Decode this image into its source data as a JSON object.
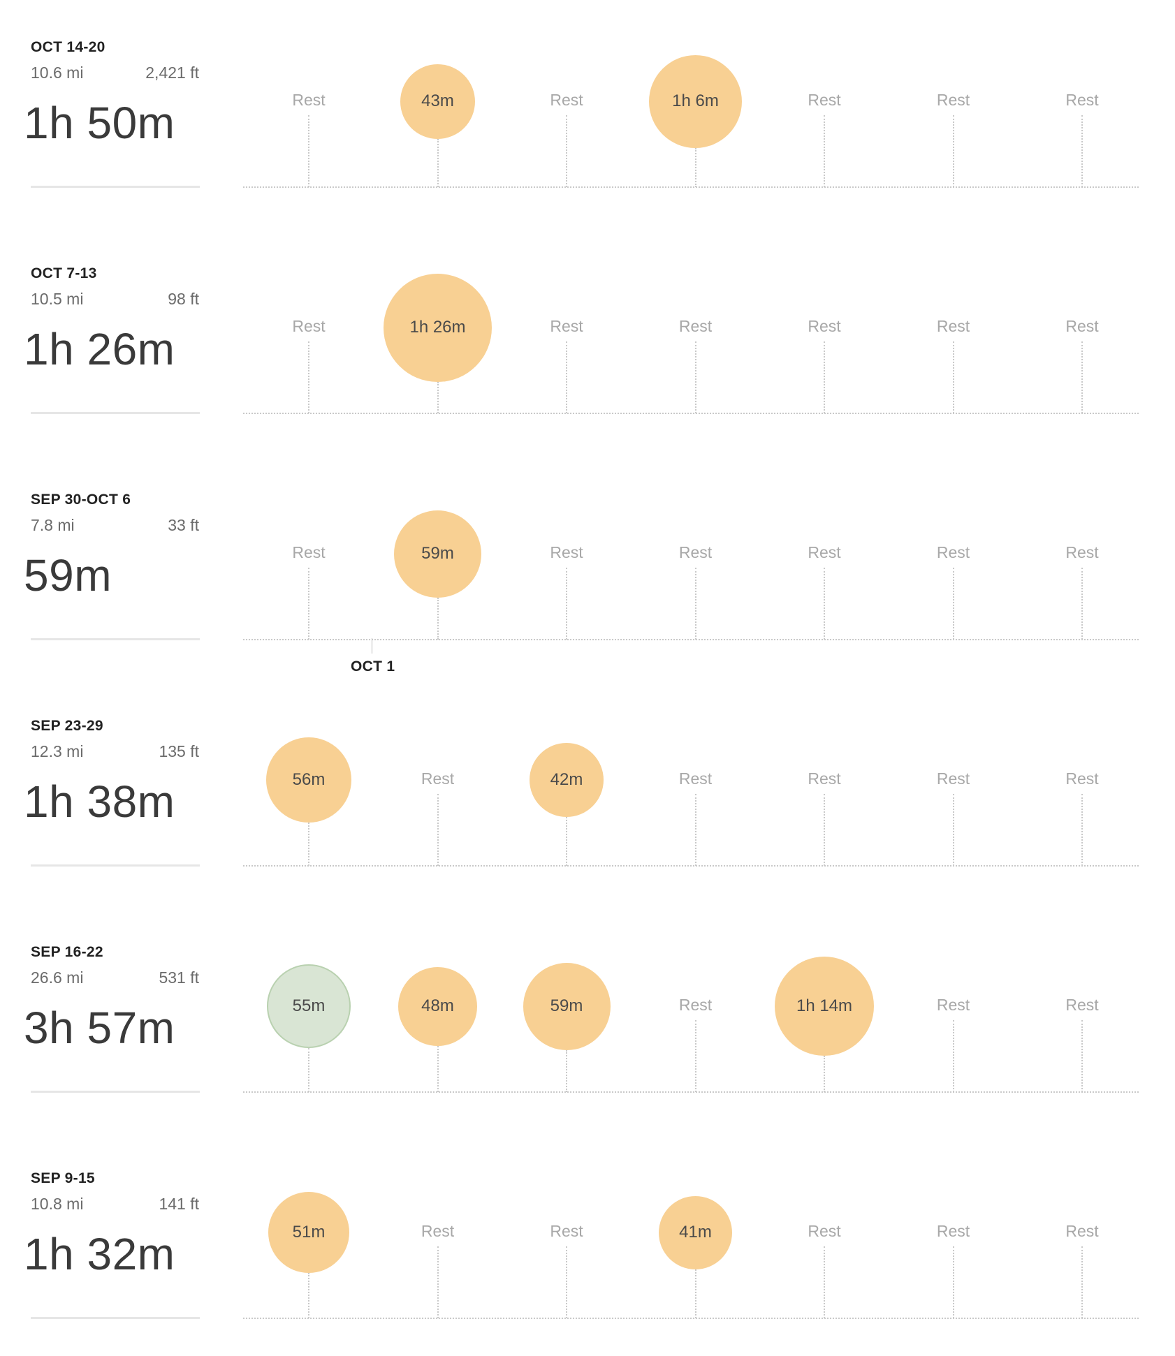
{
  "colors": {
    "bubble_fill": "#f8d093",
    "bubble_fill_alt": "#d9e5d4",
    "bubble_border_alt": "#b9d1b0"
  },
  "month_marker": {
    "label": "OCT 1"
  },
  "weeks": [
    {
      "label": "OCT 14-20",
      "distance": "10.6 mi",
      "elevation": "2,421 ft",
      "total": "1h 50m",
      "days": [
        {
          "type": "rest",
          "label": "Rest"
        },
        {
          "type": "run",
          "label": "43m",
          "minutes": 43
        },
        {
          "type": "rest",
          "label": "Rest"
        },
        {
          "type": "run",
          "label": "1h 6m",
          "minutes": 66
        },
        {
          "type": "rest",
          "label": "Rest"
        },
        {
          "type": "rest",
          "label": "Rest"
        },
        {
          "type": "rest",
          "label": "Rest"
        }
      ]
    },
    {
      "label": "OCT 7-13",
      "distance": "10.5 mi",
      "elevation": "98 ft",
      "total": "1h 26m",
      "days": [
        {
          "type": "rest",
          "label": "Rest"
        },
        {
          "type": "run",
          "label": "1h 26m",
          "minutes": 86
        },
        {
          "type": "rest",
          "label": "Rest"
        },
        {
          "type": "rest",
          "label": "Rest"
        },
        {
          "type": "rest",
          "label": "Rest"
        },
        {
          "type": "rest",
          "label": "Rest"
        },
        {
          "type": "rest",
          "label": "Rest"
        }
      ]
    },
    {
      "label": "SEP 30-OCT 6",
      "distance": "7.8 mi",
      "elevation": "33 ft",
      "total": "59m",
      "days": [
        {
          "type": "rest",
          "label": "Rest"
        },
        {
          "type": "run",
          "label": "59m",
          "minutes": 59
        },
        {
          "type": "rest",
          "label": "Rest"
        },
        {
          "type": "rest",
          "label": "Rest"
        },
        {
          "type": "rest",
          "label": "Rest"
        },
        {
          "type": "rest",
          "label": "Rest"
        },
        {
          "type": "rest",
          "label": "Rest"
        }
      ]
    },
    {
      "label": "SEP 23-29",
      "distance": "12.3 mi",
      "elevation": "135 ft",
      "total": "1h 38m",
      "days": [
        {
          "type": "run",
          "label": "56m",
          "minutes": 56
        },
        {
          "type": "rest",
          "label": "Rest"
        },
        {
          "type": "run",
          "label": "42m",
          "minutes": 42
        },
        {
          "type": "rest",
          "label": "Rest"
        },
        {
          "type": "rest",
          "label": "Rest"
        },
        {
          "type": "rest",
          "label": "Rest"
        },
        {
          "type": "rest",
          "label": "Rest"
        }
      ]
    },
    {
      "label": "SEP 16-22",
      "distance": "26.6 mi",
      "elevation": "531 ft",
      "total": "3h 57m",
      "days": [
        {
          "type": "run",
          "label": "55m",
          "minutes": 55,
          "variant": "alt"
        },
        {
          "type": "run",
          "label": "48m",
          "minutes": 48
        },
        {
          "type": "run",
          "label": "59m",
          "minutes": 59
        },
        {
          "type": "rest",
          "label": "Rest"
        },
        {
          "type": "run",
          "label": "1h 14m",
          "minutes": 74
        },
        {
          "type": "rest",
          "label": "Rest"
        },
        {
          "type": "rest",
          "label": "Rest"
        }
      ]
    },
    {
      "label": "SEP 9-15",
      "distance": "10.8 mi",
      "elevation": "141 ft",
      "total": "1h 32m",
      "days": [
        {
          "type": "run",
          "label": "51m",
          "minutes": 51
        },
        {
          "type": "rest",
          "label": "Rest"
        },
        {
          "type": "rest",
          "label": "Rest"
        },
        {
          "type": "run",
          "label": "41m",
          "minutes": 41
        },
        {
          "type": "rest",
          "label": "Rest"
        },
        {
          "type": "rest",
          "label": "Rest"
        },
        {
          "type": "rest",
          "label": "Rest"
        }
      ]
    }
  ]
}
